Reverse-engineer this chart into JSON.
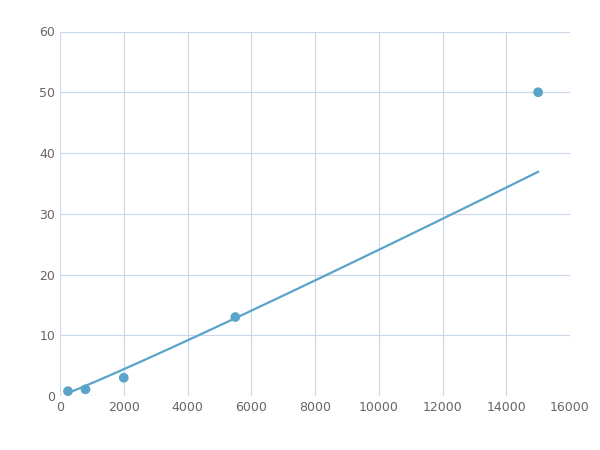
{
  "x_data": [
    250,
    800,
    2000,
    5500,
    15000
  ],
  "y_data": [
    0.8,
    1.1,
    3.0,
    13.0,
    50.0
  ],
  "line_color": "#5ba3c9",
  "marker_color": "#5ba3c9",
  "marker_size": 7,
  "line_width": 1.6,
  "xlim": [
    0,
    16000
  ],
  "ylim": [
    0,
    60
  ],
  "xticks": [
    0,
    2000,
    4000,
    6000,
    8000,
    10000,
    12000,
    14000,
    16000
  ],
  "yticks": [
    0,
    10,
    20,
    30,
    40,
    50,
    60
  ],
  "grid_color": "#c8d8e8",
  "background_color": "#ffffff",
  "fig_width": 6.0,
  "fig_height": 4.5,
  "dpi": 100
}
